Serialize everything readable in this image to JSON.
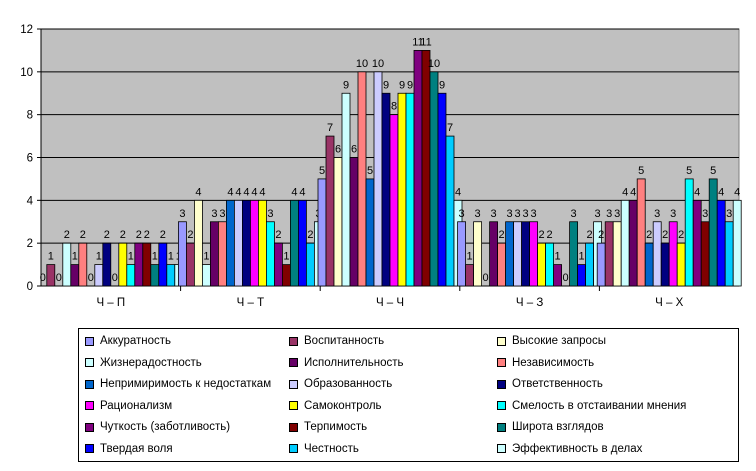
{
  "chart_data": {
    "type": "bar",
    "title": "",
    "xlabel": "",
    "ylabel": "",
    "ylim": [
      0,
      12
    ],
    "yticks": [
      0,
      2,
      4,
      6,
      8,
      10,
      12
    ],
    "grid": true,
    "plot_background": "#c0c0c0",
    "legend_position": "bottom",
    "categories": [
      "Ч – П",
      "Ч – Т",
      "Ч – Ч",
      "Ч – З",
      "Ч – Х"
    ],
    "series": [
      {
        "name": "Аккуратность",
        "color": "#9999ff",
        "values": [
          0,
          3,
          5,
          3,
          2
        ]
      },
      {
        "name": "Воспитанность",
        "color": "#993366",
        "values": [
          1,
          2,
          7,
          1,
          3
        ]
      },
      {
        "name": "Высокие запросы",
        "color": "#ffffcc",
        "values": [
          0,
          4,
          6,
          3,
          3
        ]
      },
      {
        "name": "Жизнерадостность",
        "color": "#ccffff",
        "values": [
          2,
          1,
          9,
          0,
          4
        ]
      },
      {
        "name": "Исполнительность",
        "color": "#660066",
        "values": [
          1,
          3,
          6,
          3,
          4
        ]
      },
      {
        "name": "Независимость",
        "color": "#ff8080",
        "values": [
          2,
          3,
          10,
          2,
          5
        ]
      },
      {
        "name": "Непримиримость к недостаткам",
        "color": "#0066cc",
        "values": [
          0,
          4,
          5,
          3,
          2
        ]
      },
      {
        "name": "Образованность",
        "color": "#ccccff",
        "values": [
          1,
          4,
          10,
          3,
          3
        ]
      },
      {
        "name": "Ответственность",
        "color": "#000080",
        "values": [
          2,
          4,
          9,
          3,
          2
        ]
      },
      {
        "name": "Рационализм",
        "color": "#ff00ff",
        "values": [
          0,
          4,
          8,
          3,
          3
        ]
      },
      {
        "name": "Самоконтроль",
        "color": "#ffff00",
        "values": [
          2,
          4,
          9,
          2,
          2
        ]
      },
      {
        "name": "Смелость в отстаивании мнения",
        "color": "#00ffff",
        "values": [
          1,
          3,
          9,
          2,
          5
        ]
      },
      {
        "name": "Чуткость (заботливость)",
        "color": "#800080",
        "values": [
          2,
          2,
          11,
          1,
          4
        ]
      },
      {
        "name": "Терпимость",
        "color": "#800000",
        "values": [
          2,
          1,
          11,
          0,
          3
        ]
      },
      {
        "name": "Широта взглядов",
        "color": "#008080",
        "values": [
          1,
          4,
          10,
          3,
          5
        ]
      },
      {
        "name": "Твердая воля",
        "color": "#0000ff",
        "values": [
          2,
          4,
          9,
          1,
          4
        ]
      },
      {
        "name": "Честность",
        "color": "#00ccff",
        "values": [
          1,
          2,
          7,
          2,
          3
        ]
      },
      {
        "name": "Эффективность в делах",
        "color": "#ccffff",
        "values": [
          1,
          3,
          4,
          3,
          4
        ]
      }
    ]
  }
}
